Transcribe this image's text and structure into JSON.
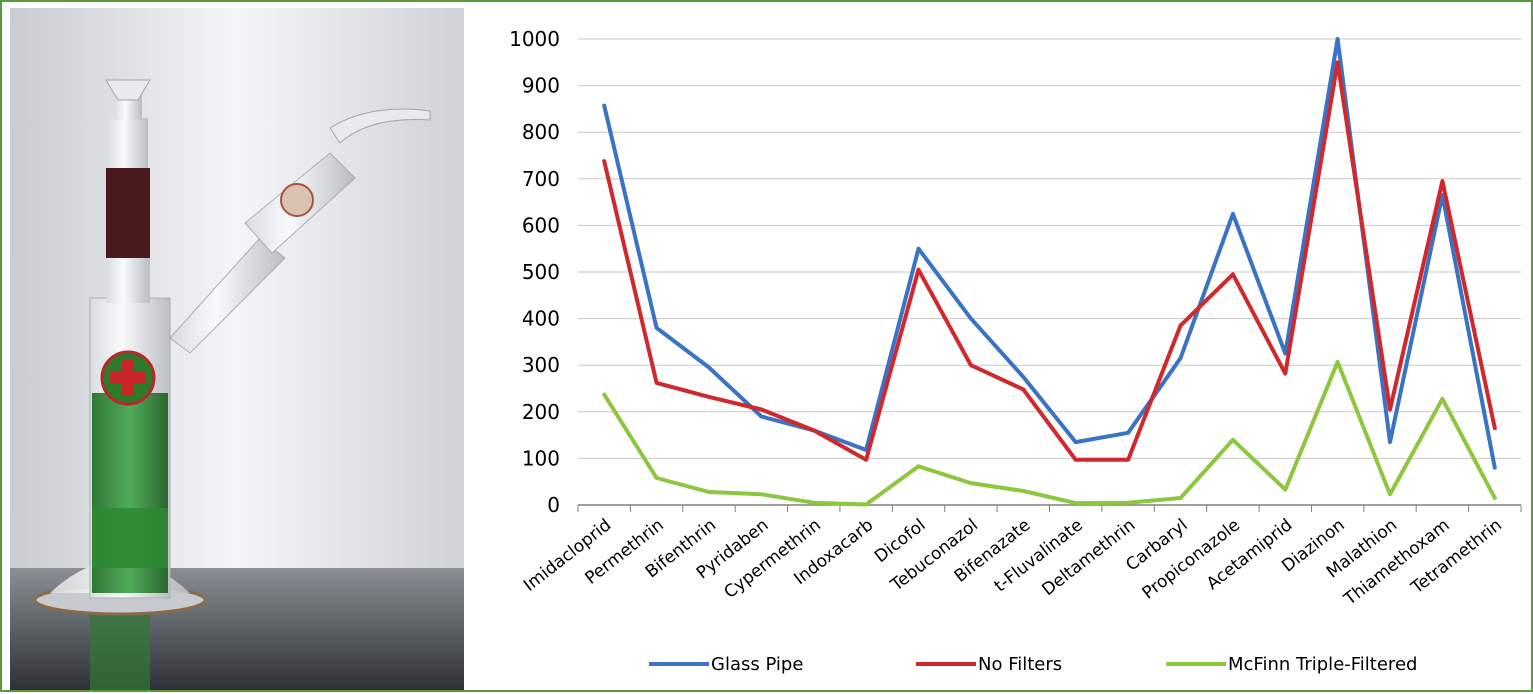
{
  "chart_data": {
    "type": "line",
    "title": "",
    "xlabel": "",
    "ylabel": "",
    "ylim": [
      0,
      1000
    ],
    "yticks": [
      0,
      100,
      200,
      300,
      400,
      500,
      600,
      700,
      800,
      900,
      1000
    ],
    "grid": true,
    "legend_position": "bottom",
    "categories": [
      "Imidacloprid",
      "Permethrin",
      "Bifenthrin",
      "Pyridaben",
      "Cypermethrin",
      "Indoxacarb",
      "Dicofol",
      "Tebuconazol",
      "Bifenazate",
      "t-Fluvalinate",
      "Deltamethrin",
      "Carbaryl",
      "Propiconazole",
      "Acetamiprid",
      "Diazinon",
      "Malathion",
      "Thiamethoxam",
      "Tetramethrin"
    ],
    "series": [
      {
        "name": "Glass Pipe",
        "color": "#3b73c4",
        "values": [
          857,
          380,
          295,
          190,
          160,
          118,
          550,
          400,
          275,
          135,
          155,
          315,
          625,
          325,
          1000,
          135,
          665,
          80
        ]
      },
      {
        "name": "No Filters",
        "color": "#d0282c",
        "values": [
          738,
          262,
          232,
          205,
          160,
          97,
          505,
          300,
          248,
          97,
          97,
          385,
          495,
          282,
          950,
          205,
          695,
          165
        ]
      },
      {
        "name": "McFinn Triple-Filtered",
        "color": "#8dc63f",
        "values": [
          237,
          58,
          28,
          23,
          5,
          1,
          83,
          47,
          30,
          4,
          5,
          15,
          140,
          33,
          307,
          23,
          228,
          15
        ]
      }
    ]
  }
}
